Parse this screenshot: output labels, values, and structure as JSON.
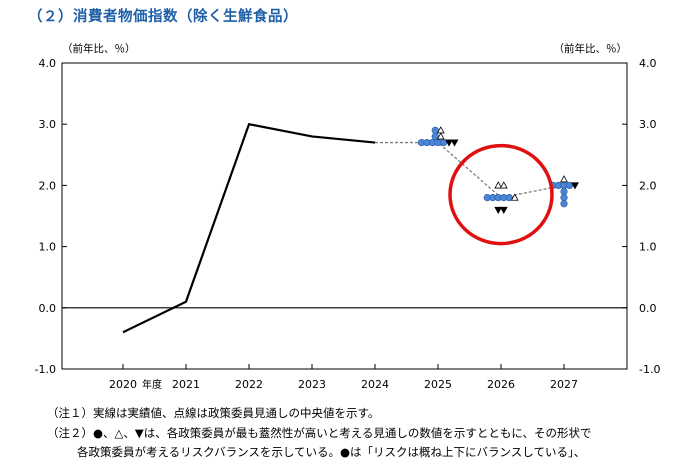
{
  "title": "（２）消費者物価指数（除く生鮮食品）",
  "colors": {
    "title": "#1f5fa8",
    "line": "#000000",
    "median": "#808080",
    "marker": "#4a86d8",
    "circle": "#e01010"
  },
  "chart_data": {
    "type": "line",
    "title": "（２）消費者物価指数（除く生鮮食品）",
    "ylabel_left": "（前年比、％）",
    "ylabel_right": "（前年比、％）",
    "fiscal_year_label": "年度",
    "categories": [
      "2020",
      "2021",
      "2022",
      "2023",
      "2024",
      "2025",
      "2026",
      "2027"
    ],
    "ylim": [
      -1.0,
      4.0
    ],
    "yticks": [
      "4.0",
      "3.0",
      "2.0",
      "1.0",
      "0.0",
      "-1.0"
    ],
    "series": [
      {
        "style": "solid",
        "x": [
          "2020",
          "2021",
          "2022",
          "2023",
          "2024"
        ],
        "values": [
          -0.4,
          0.1,
          3.0,
          2.8,
          2.7
        ]
      },
      {
        "style": "dashed",
        "x": [
          "2024",
          "2025",
          "2026",
          "2027"
        ],
        "values": [
          2.7,
          2.7,
          1.8,
          2.0
        ]
      }
    ],
    "member_markers": [
      {
        "year": "2025",
        "circle": [
          2.7,
          2.7,
          2.7,
          2.7,
          2.7,
          2.8,
          2.9
        ],
        "triangle_up": [
          2.9,
          2.8
        ],
        "triangle_down": [
          2.7,
          2.7
        ]
      },
      {
        "year": "2026",
        "circle": [
          1.8,
          1.8,
          1.8,
          1.8,
          1.8
        ],
        "triangle_up": [
          2.0,
          2.0,
          1.8
        ],
        "triangle_down": [
          1.6,
          1.6
        ]
      },
      {
        "year": "2027",
        "circle": [
          2.0,
          2.0,
          2.0,
          2.0,
          1.9,
          1.8,
          1.7
        ],
        "triangle_up": [
          2.1
        ],
        "triangle_down": [
          2.0
        ]
      }
    ],
    "highlight_year": "2026",
    "grid": false
  },
  "notes": {
    "n1": "（注１）実線は実績値、点線は政策委員見通しの中央値を示す。",
    "n2": "（注２）●、△、▼は、各政策委員が最も蓋然性が高いと考える見通しの数値を示すとともに、その形状で",
    "n3": "各政策委員が考えるリスクバランスを示している。●は「リスクは概ね上下にバランスしている」、"
  }
}
